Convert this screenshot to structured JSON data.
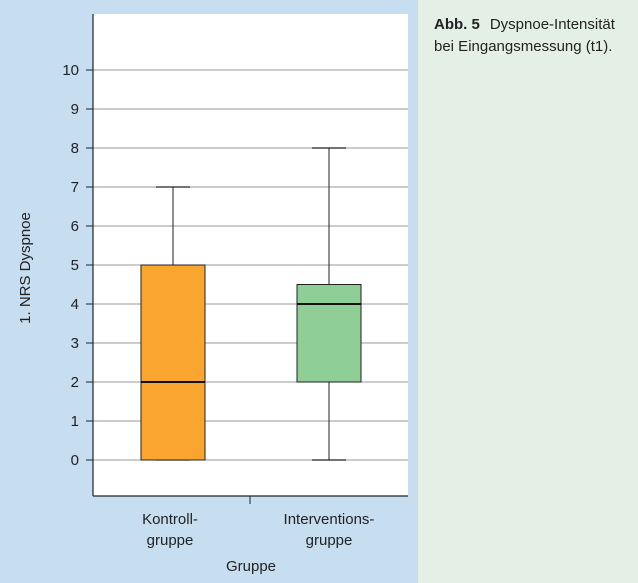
{
  "caption": {
    "label": "Abb. 5",
    "text": "Dyspnoe-Intensität bei Eingangs­messung (t1)."
  },
  "colors": {
    "figure_background": "#c6def0",
    "caption_background": "#e4f0e6",
    "plot_background": "#ffffff",
    "kontroll_box": "#f9a52f",
    "interventions_box": "#8fcf97"
  },
  "chart_data": {
    "type": "boxplot",
    "ylabel": "1. NRS Dyspnoe",
    "xlabel": "Gruppe",
    "ylim": [
      -1,
      11
    ],
    "yticks": [
      0,
      1,
      2,
      3,
      4,
      5,
      6,
      7,
      8,
      9,
      10
    ],
    "grid": "horizontal",
    "categories": [
      {
        "line1": "Kontroll-",
        "line2": "gruppe"
      },
      {
        "line1": "Interventions-",
        "line2": "gruppe"
      }
    ],
    "boxes": [
      {
        "min": 0,
        "q1": 0,
        "median": 2,
        "q3": 5,
        "max": 7,
        "color": "#f9a52f"
      },
      {
        "min": 0,
        "q1": 2,
        "median": 4,
        "q3": 4.5,
        "max": 8,
        "color": "#8fcf97"
      }
    ]
  }
}
